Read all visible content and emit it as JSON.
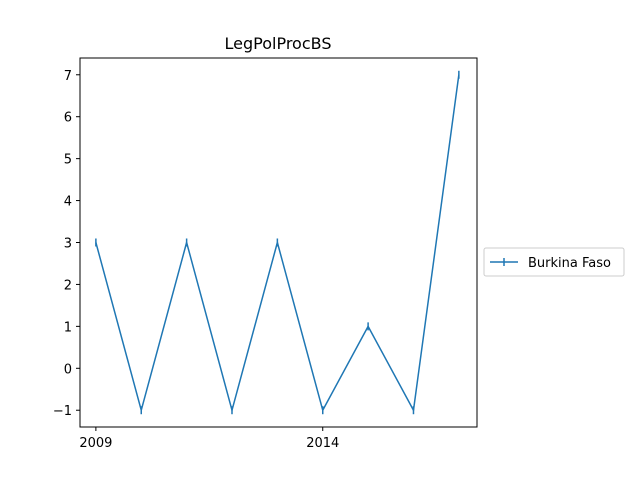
{
  "chart_data": {
    "type": "line",
    "title": "LegPolProcBS",
    "xlabel": "",
    "ylabel": "",
    "x": [
      2009,
      2010,
      2011,
      2012,
      2013,
      2014,
      2015,
      2016,
      2017
    ],
    "x_ticks": [
      2009,
      2014
    ],
    "xlim": [
      2008.65,
      2017.4
    ],
    "y_ticks": [
      -1,
      0,
      1,
      2,
      3,
      4,
      5,
      6,
      7
    ],
    "ylim": [
      -1.4,
      7.4
    ],
    "grid": false,
    "legend_position": "right-outside",
    "series": [
      {
        "name": "Burkina Faso",
        "values": [
          3,
          -1,
          3,
          -1,
          3,
          -1,
          1,
          -1,
          7
        ],
        "color": "#1f77b4",
        "marker": "vertical-line"
      }
    ]
  }
}
